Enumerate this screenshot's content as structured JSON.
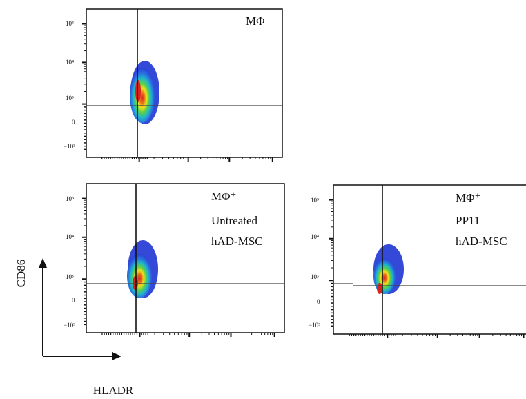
{
  "chart_data": [
    {
      "type": "density",
      "panel_label_lines": [
        "MΦ"
      ],
      "xlabel": "HLADR",
      "ylabel": "CD86",
      "y_ticks": [
        {
          "label": "10⁵",
          "value": 100000
        },
        {
          "label": "10⁴",
          "value": 10000
        },
        {
          "label": "10³",
          "value": 1000
        },
        {
          "label": "0",
          "value": 0
        },
        {
          "label": "−10³",
          "value": -1000
        }
      ],
      "gate": {
        "x_position": "vertical line through population",
        "y_value": 700
      }
    },
    {
      "type": "density",
      "panel_label_lines": [
        "MΦ⁺",
        "Untreated",
        "hAD-MSC"
      ],
      "xlabel": "HLADR",
      "ylabel": "CD86",
      "y_ticks": [
        {
          "label": "10⁵",
          "value": 100000
        },
        {
          "label": "10⁴",
          "value": 10000
        },
        {
          "label": "10³",
          "value": 1000
        },
        {
          "label": "0",
          "value": 0
        },
        {
          "label": "−10³",
          "value": -1000
        }
      ],
      "gate": {
        "x_position": "vertical line through population",
        "y_value": 700
      }
    },
    {
      "type": "density",
      "panel_label_lines": [
        "MΦ⁺",
        "PP11",
        "hAD-MSC"
      ],
      "xlabel": "HLADR",
      "ylabel": "CD86",
      "y_ticks": [
        {
          "label": "10⁵",
          "value": 100000
        },
        {
          "label": "10⁴",
          "value": 10000
        },
        {
          "label": "10³",
          "value": 1000
        },
        {
          "label": "0",
          "value": 0
        },
        {
          "label": "−10³",
          "value": -1000
        }
      ],
      "gate": {
        "x_position": "vertical line through population",
        "y_value": 700
      }
    }
  ],
  "axes": {
    "xlabel": "HLADR",
    "ylabel": "CD86"
  },
  "colors": {
    "frame": "#111111",
    "gate": "#444444",
    "density_low": "#2a3fd6",
    "density_mid": "#1fb5c9",
    "density_high": "#f2e21b",
    "density_peak": "#d8231e"
  }
}
